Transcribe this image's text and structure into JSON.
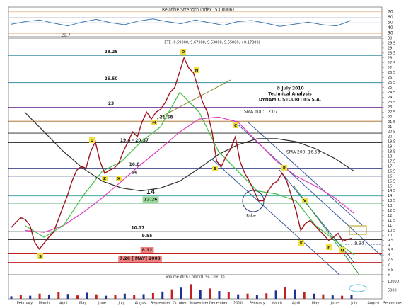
{
  "chart_data": [
    {
      "type": "line",
      "title": "Relative Strength Index (53.8006)",
      "annotation": "20.7",
      "color": "#3a78b0",
      "values": [
        47,
        52,
        55,
        49,
        44,
        51,
        56,
        50,
        46,
        53,
        57,
        52,
        48,
        55,
        50,
        45,
        52,
        54,
        49,
        43,
        47,
        51,
        46,
        44,
        54
      ],
      "ylim": [
        25,
        75
      ],
      "yticks": [
        30,
        40,
        50,
        60,
        70
      ],
      "grid": true
    },
    {
      "type": "line",
      "subtitle": "ETE (0.59000, 9.67000, 9.53000, 9.65000, +0.17000)",
      "price": {
        "color": "#a0141e",
        "values": [
          10.8,
          11.3,
          11.8,
          11.6,
          11,
          9.3,
          8.6,
          9.2,
          9.8,
          10.3,
          11.5,
          12.8,
          14,
          15.5,
          16.6,
          17,
          16.8,
          18.5,
          19.5,
          17.5,
          16.3,
          16.6,
          16.8,
          17.3,
          18.5,
          19.5,
          20.5,
          20,
          21.5,
          22.5,
          21.8,
          22.5,
          22.8,
          23.5,
          24.5,
          25,
          26.5,
          28,
          27,
          26.5,
          25,
          23.5,
          22.5,
          20.5,
          17.5,
          17,
          18,
          18.8,
          20,
          17.5,
          16.3,
          15.5,
          14.5,
          13.5,
          13.5,
          14.5,
          15.2,
          15.5,
          16.3,
          15.5,
          14,
          12.5,
          10.5,
          11.2,
          11.5,
          11,
          10.5,
          10,
          9.5,
          9.8,
          10.2,
          9.4,
          9.6,
          9.7
        ]
      },
      "categories": [
        "February",
        "March",
        "April",
        "May",
        "June",
        "July",
        "August",
        "September",
        "October",
        "November",
        "December",
        "2010",
        "February",
        "March",
        "April",
        "May",
        "June",
        "July",
        "August",
        "September"
      ],
      "series": [
        {
          "name": "SMA 200: 16.53",
          "color": "#333333",
          "values": [
            22.5,
            20.5,
            18.5,
            16.8,
            15.5,
            14.8,
            14.5,
            14.8,
            15.5,
            16.8,
            18.2,
            19.2,
            19.8,
            19.8,
            19.5,
            18.8,
            17.8,
            16.5,
            null,
            null
          ]
        },
        {
          "name": "SMA 100: 12.07",
          "color": "#e040c0",
          "values": [
            10.5,
            10.3,
            11,
            12.3,
            13.8,
            15.5,
            17.2,
            18.8,
            20.5,
            21.8,
            22,
            21.5,
            19.5,
            17.5,
            16,
            15,
            13.8,
            12.2,
            null,
            null
          ]
        },
        {
          "color": "#40c040",
          "values": [
            11,
            9.8,
            11,
            14,
            16.5,
            17.5,
            19.5,
            21,
            24.5,
            22.5,
            18.5,
            16.5,
            14.5,
            14.2,
            13.5,
            11,
            9.5,
            8,
            null,
            null
          ]
        }
      ],
      "levels": [
        {
          "value": 28.25,
          "color": "#3a8fa0"
        },
        {
          "value": 25.5,
          "label": "25.50",
          "color": "#3a8fa0"
        },
        {
          "value": 23,
          "color": "#7a3a9a"
        },
        {
          "value": 21.58,
          "color": "#a0641e"
        },
        {
          "values": [
            19.4,
            20.37
          ],
          "label": "19.4 - 20.37",
          "color": "#222222"
        },
        {
          "value": 16.8,
          "color": "#1e2a7a"
        },
        {
          "value": 16,
          "color": "#1e2a7a"
        },
        {
          "value": 14,
          "color": "#2a9a9a"
        },
        {
          "value": 13.26,
          "color": "#2a9a4a",
          "box": "#9ad89a"
        },
        {
          "value": 10.37,
          "color": "#222222"
        },
        {
          "value": 9.55,
          "color": "#222222"
        },
        {
          "value": 8.12,
          "color": "#c02020",
          "box": "#f08080"
        },
        {
          "value": 7.26,
          "label": "7.26 [ MAY] 2003",
          "color": "#c02020",
          "box": "#f08080"
        }
      ],
      "markers": [
        "O",
        "N",
        "D",
        "M",
        "Z",
        "X",
        "B",
        "C",
        "R",
        "V",
        "K",
        "F",
        "Q",
        "S"
      ],
      "notes": [
        "© July 2010",
        "Technical  Analysis",
        "DYNAMIC SECURITIES S.A.",
        "Fake",
        "9.94"
      ],
      "ylim": [
        6,
        30
      ],
      "yticks": [
        6,
        6.5,
        7,
        7.5,
        8,
        8.5,
        9,
        9.5,
        10,
        10.5,
        11,
        11.5,
        12,
        12.5,
        13,
        13.5,
        14,
        14.5,
        15,
        15.5,
        16,
        16.5,
        17,
        17.5,
        18,
        18.5,
        19,
        19.5,
        20,
        20.5,
        21,
        21.5,
        22,
        22.5,
        23,
        23.5,
        24,
        24.5,
        25,
        25.5,
        26,
        26.5,
        27,
        27.5,
        28,
        28.5,
        29,
        29.5,
        30
      ]
    },
    {
      "type": "bar",
      "title": "Volume With Color (0, 947,091.0)",
      "colors": [
        "#1f2f9a",
        "#c02020"
      ],
      "values": [
        1500,
        2200,
        1800,
        3000,
        2500,
        4000,
        2800,
        2000,
        3500,
        2600,
        1800,
        2400,
        3000,
        2200,
        2700,
        3300,
        4200,
        5500,
        6500,
        8500,
        5200,
        6000,
        4500,
        3800,
        2600,
        3000,
        2400,
        3200,
        4800,
        6800,
        5500,
        3900,
        3000,
        2600,
        2000,
        1800,
        2200
      ],
      "ylim": [
        0,
        14000
      ],
      "yticks": [
        5000,
        10000
      ]
    }
  ]
}
